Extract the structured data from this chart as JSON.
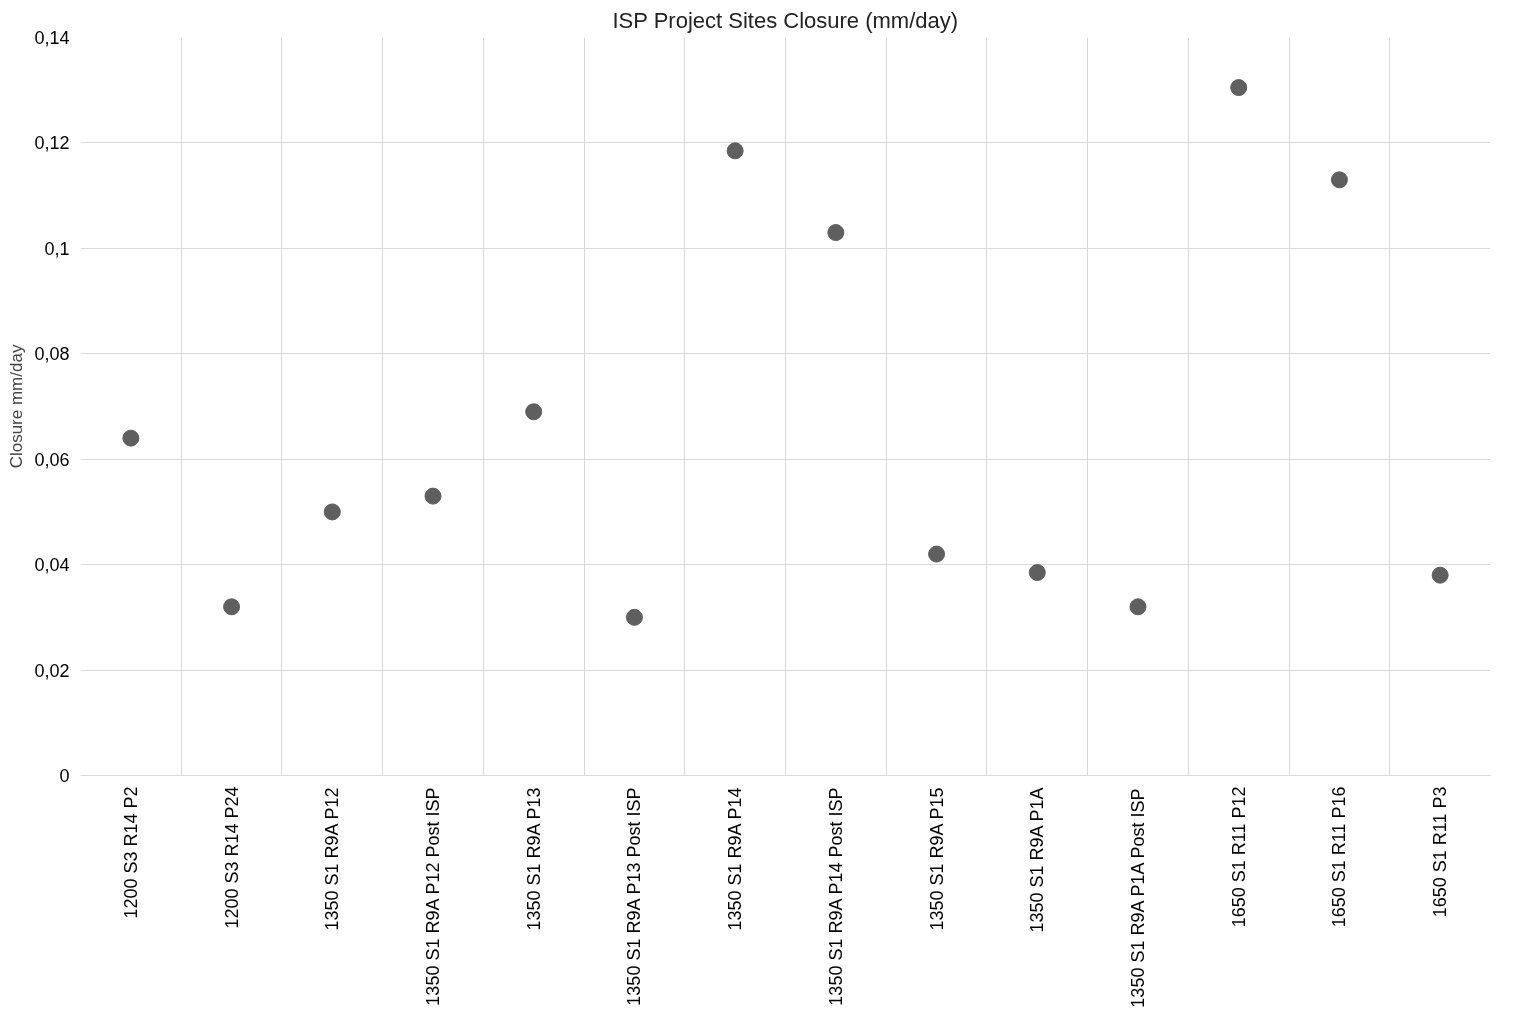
{
  "chart_data": {
    "type": "scatter",
    "title": "ISP Project Sites Closure (mm/day)",
    "ylabel": "Closure mm/day",
    "categories": [
      "1200 S3 R14 P2",
      "1200 S3 R14 P24",
      "1350 S1 R9A P12",
      "1350 S1 R9A P12 Post ISP",
      "1350 S1 R9A P13",
      "1350 S1 R9A P13 Post ISP",
      "1350 S1 R9A P14",
      "1350 S1 R9A P14 Post ISP",
      "1350 S1 R9A P15",
      "1350 S1 R9A P1A",
      "1350 S1 R9A P1A Post ISP",
      "1650 S1 R11 P12",
      "1650 S1 R11 P16",
      "1650 S1 R11 P3"
    ],
    "values": [
      0.064,
      0.032,
      0.05,
      0.053,
      0.069,
      0.03,
      0.1185,
      0.103,
      0.042,
      0.0385,
      0.032,
      0.1305,
      0.113,
      0.038
    ],
    "color": "#5f5f5f",
    "marker": "circle",
    "grid": true,
    "ylim": [
      0,
      0.14
    ],
    "yticks": [
      0,
      {
        "value": 0.02,
        "label": "0,02"
      },
      {
        "value": 0.04,
        "label": "0,04"
      },
      {
        "value": 0.06,
        "label": "0,06"
      },
      {
        "value": 0.08,
        "label": "0,08"
      },
      {
        "value": 0.1,
        "label": "0,1"
      },
      {
        "value": 0.12,
        "label": "0,12"
      },
      {
        "value": 0.14,
        "label": "0,14"
      }
    ]
  }
}
